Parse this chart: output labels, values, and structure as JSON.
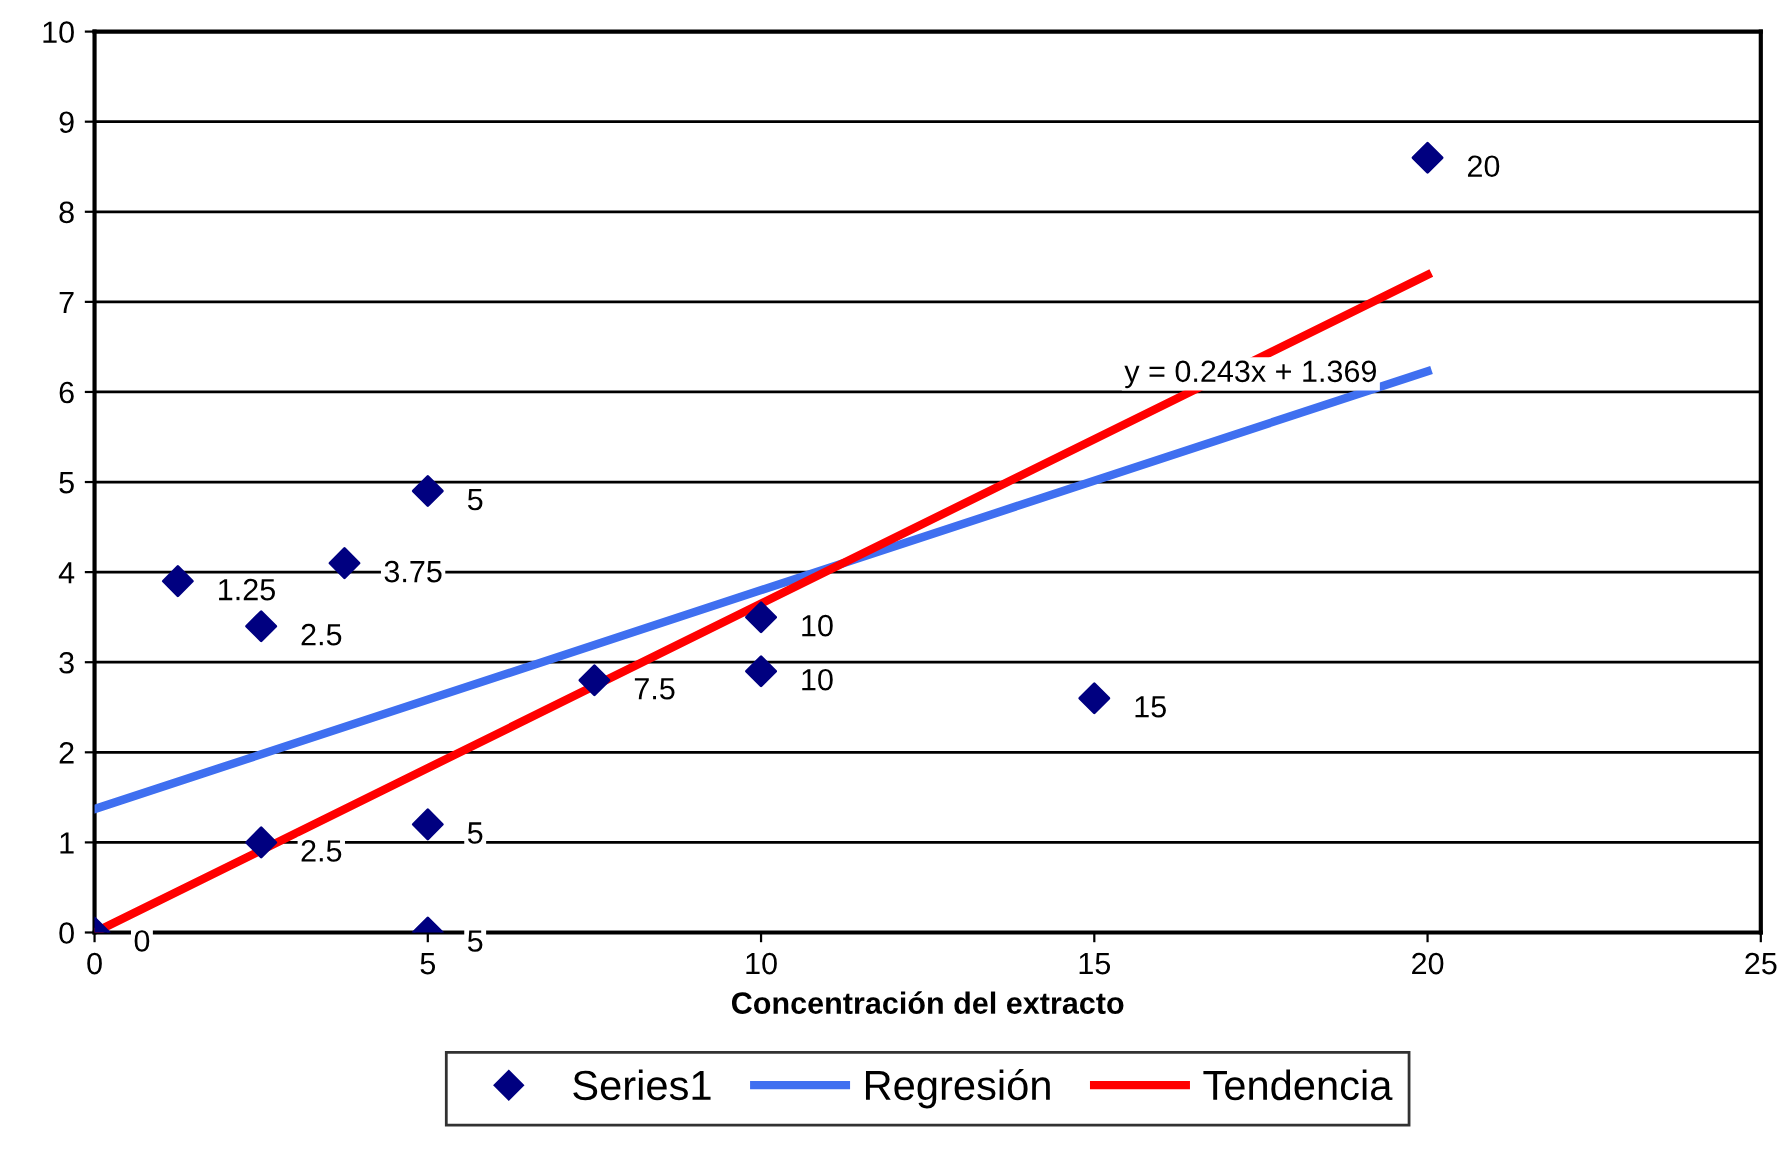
{
  "chart_data": {
    "type": "scatter",
    "xlabel": "Concentración del extracto",
    "xlim": [
      0,
      25
    ],
    "xticks": [
      0,
      5,
      10,
      15,
      20,
      25
    ],
    "ylim": [
      0,
      10
    ],
    "yticks": [
      0,
      1,
      2,
      3,
      4,
      5,
      6,
      7,
      8,
      9,
      10
    ],
    "grid": "y",
    "legend": "bottom",
    "series": [
      {
        "name": "Series1",
        "marker": "diamond",
        "color": "#000080",
        "x": [
          0,
          1.25,
          2.5,
          2.5,
          3.75,
          5,
          5,
          5,
          7.5,
          10,
          10,
          15,
          20
        ],
        "values": [
          0,
          3.9,
          3.4,
          1.0,
          4.1,
          4.9,
          1.2,
          0,
          2.8,
          3.5,
          2.9,
          2.6,
          8.6
        ]
      },
      {
        "name": "Regresión",
        "type": "line",
        "marker": "none",
        "line_style": "solid",
        "color": "#3f6ff0",
        "x": [
          0,
          20
        ],
        "values": [
          1.37,
          6.23
        ]
      },
      {
        "name": "Tendencia",
        "type": "line",
        "marker": "none",
        "line_style": "solid",
        "color": "#ff0000",
        "x": [
          0,
          20
        ],
        "values": [
          0,
          7.3
        ]
      }
    ],
    "annotations": [
      {
        "text": "0",
        "x": 0,
        "y": 0
      },
      {
        "text": "1.25",
        "x": 1.25,
        "y": 3.9
      },
      {
        "text": "2.5",
        "x": 2.5,
        "y": 3.4
      },
      {
        "text": "2.5",
        "x": 2.5,
        "y": 1.0
      },
      {
        "text": "3.75",
        "x": 3.75,
        "y": 4.1
      },
      {
        "text": "5",
        "x": 5,
        "y": 4.9
      },
      {
        "text": "5",
        "x": 5,
        "y": 1.2
      },
      {
        "text": "5",
        "x": 5,
        "y": 0
      },
      {
        "text": "7.5",
        "x": 7.5,
        "y": 2.8
      },
      {
        "text": "10",
        "x": 10,
        "y": 3.5
      },
      {
        "text": "10",
        "x": 10,
        "y": 2.9
      },
      {
        "text": "15",
        "x": 15,
        "y": 2.6
      },
      {
        "text": "20",
        "x": 20,
        "y": 8.6
      },
      "y = 0.243x + 1.369"
    ]
  }
}
